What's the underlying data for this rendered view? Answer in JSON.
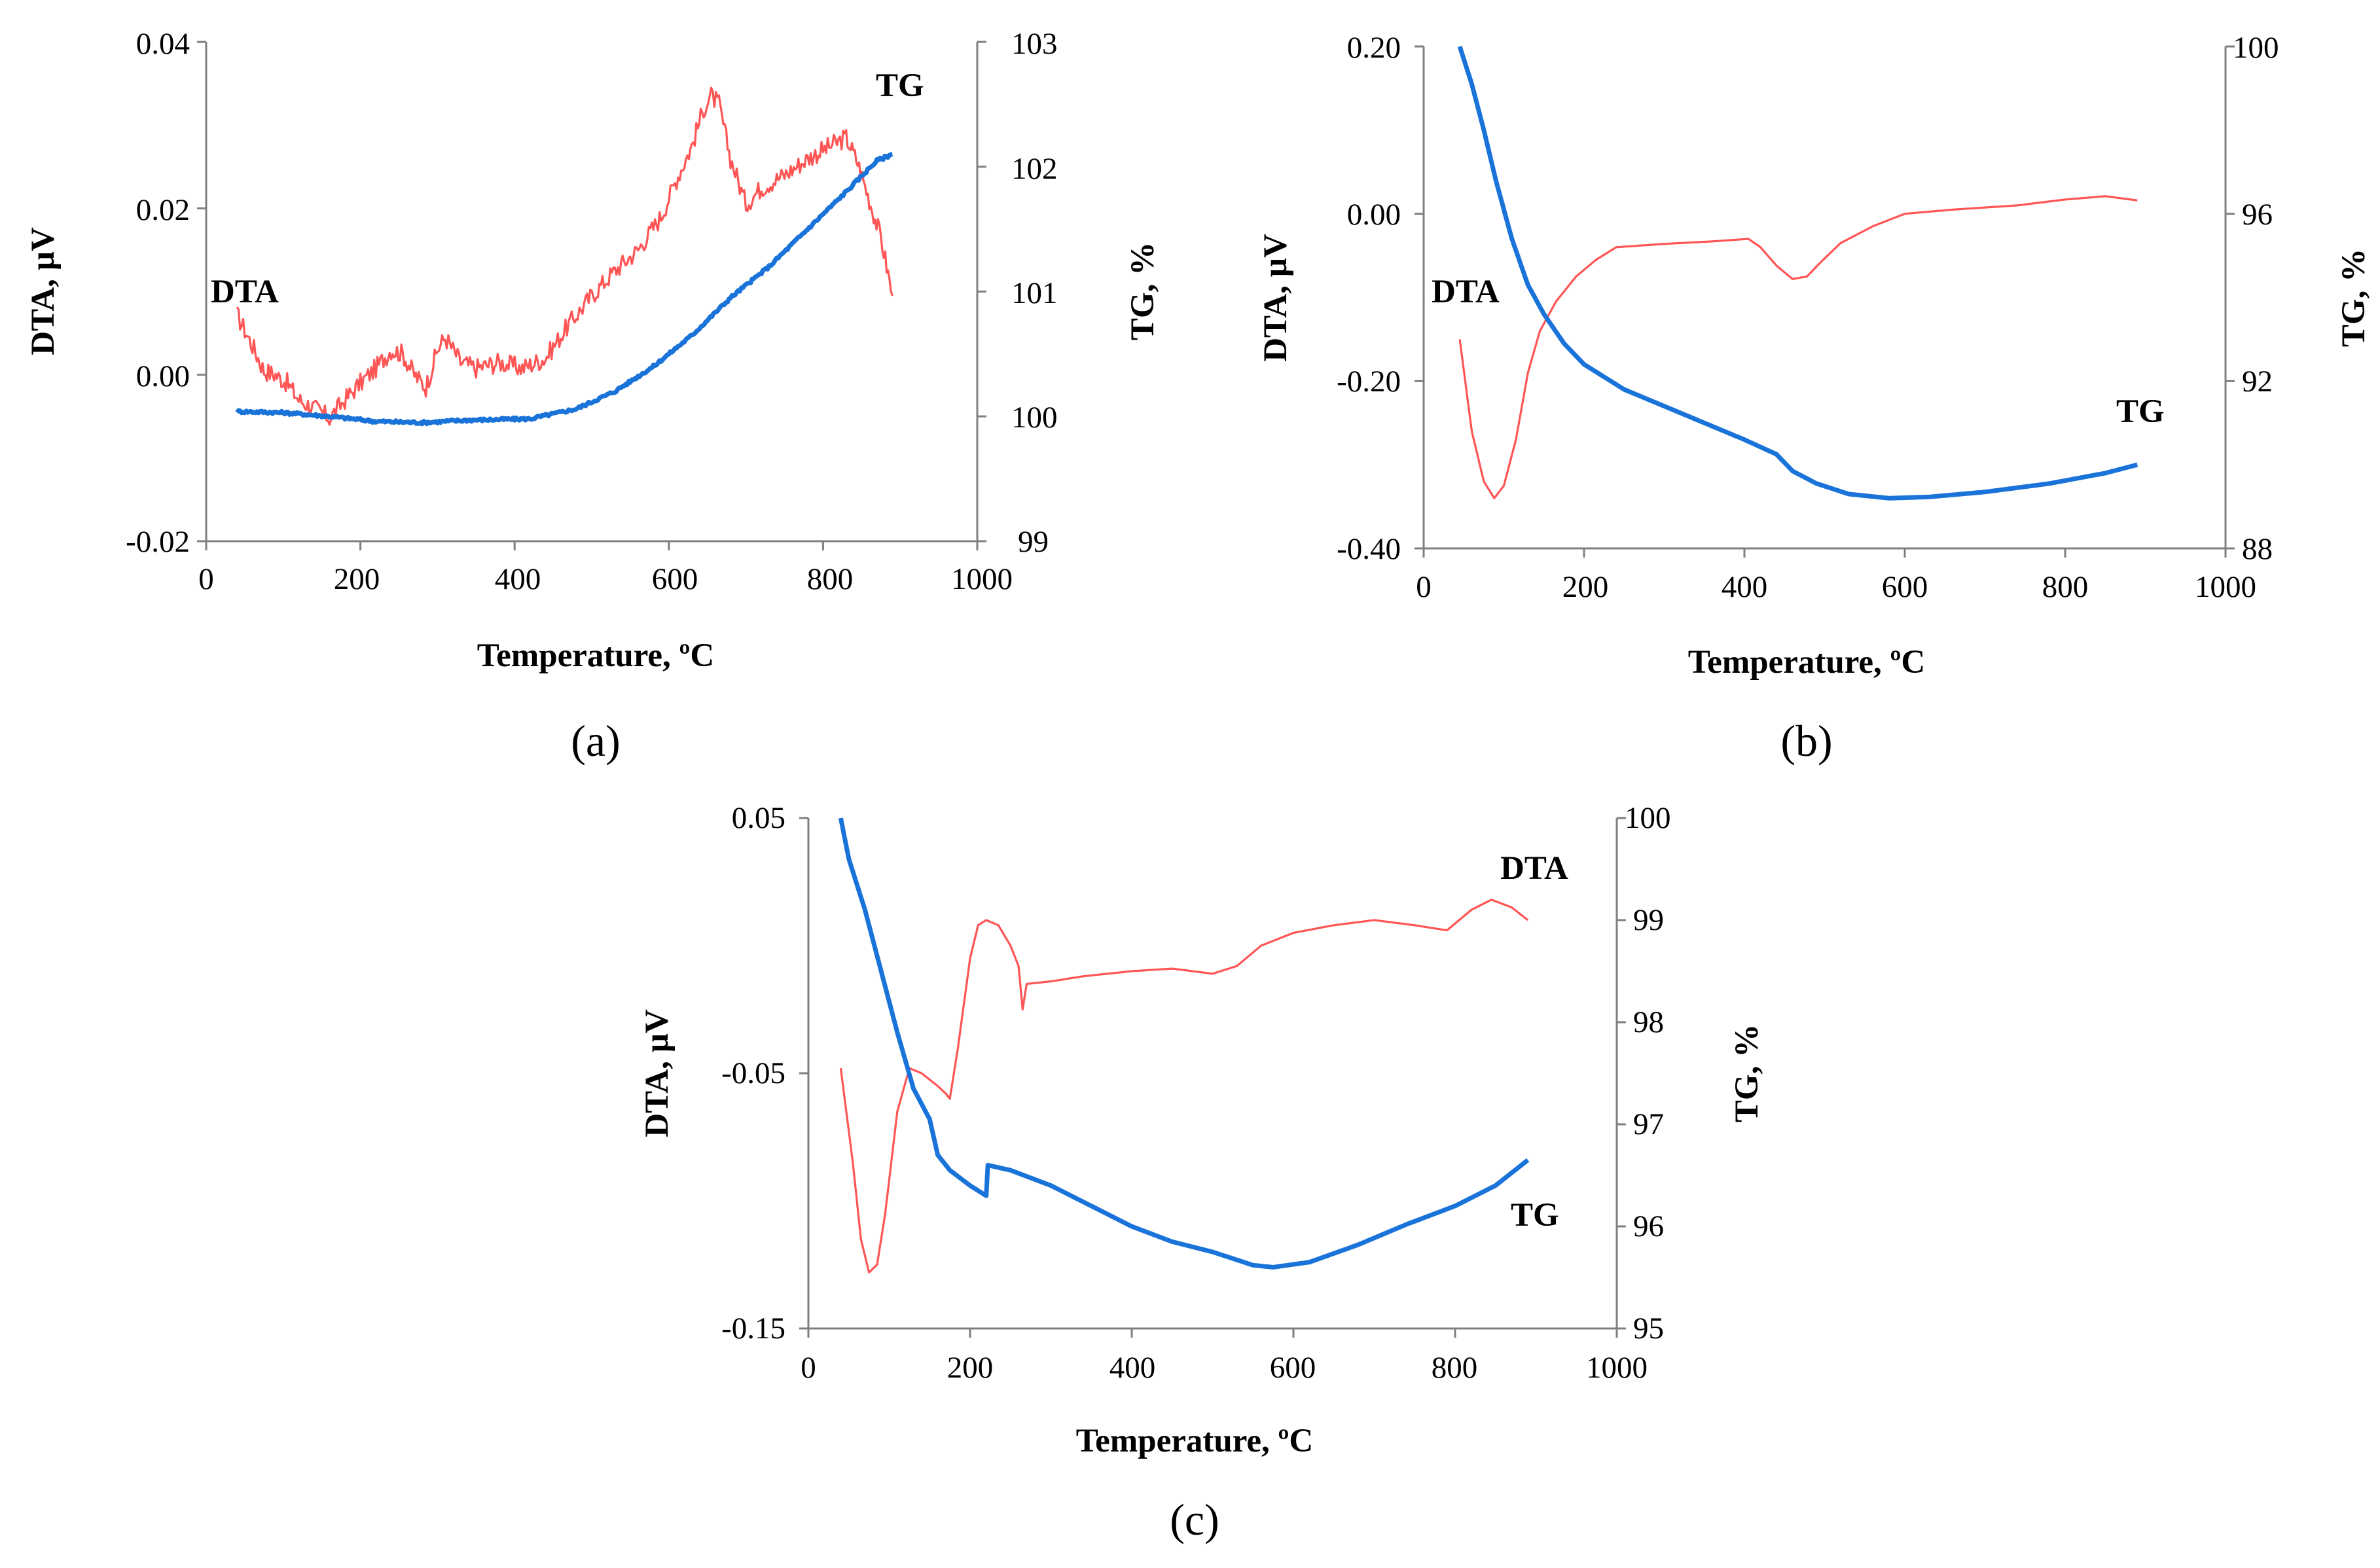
{
  "chart_data": [
    {
      "panel": "a",
      "type": "line",
      "caption": "(a)",
      "xlabel": "Temperature,  ºC",
      "ylabel_left": "DTA, µV",
      "ylabel_right": "TG, %",
      "xlim": [
        0,
        1000
      ],
      "ylim_left": [
        -0.02,
        0.04
      ],
      "ylim_right": [
        99,
        103
      ],
      "xticks": [
        "0",
        "200",
        "400",
        "600",
        "800",
        "1000"
      ],
      "yticks_left": [
        "-0.02",
        "0.00",
        "0.02",
        "0.04"
      ],
      "yticks_right": [
        "99",
        "100",
        "101",
        "102",
        "103"
      ],
      "series": [
        {
          "name": "DTA",
          "axis": "left",
          "color": "#ff5555",
          "noise": 0.0012,
          "points": [
            [
              40,
              0.0072
            ],
            [
              60,
              0.0035
            ],
            [
              75,
              0.0005
            ],
            [
              90,
              0.0
            ],
            [
              105,
              -0.001
            ],
            [
              120,
              -0.003
            ],
            [
              140,
              -0.004
            ],
            [
              160,
              -0.0052
            ],
            [
              180,
              -0.003
            ],
            [
              200,
              -0.001
            ],
            [
              220,
              0.0008
            ],
            [
              240,
              0.003
            ],
            [
              255,
              0.0025
            ],
            [
              270,
              0.0
            ],
            [
              285,
              -0.0015
            ],
            [
              300,
              0.003
            ],
            [
              310,
              0.0045
            ],
            [
              330,
              0.0015
            ],
            [
              350,
              0.0008
            ],
            [
              380,
              0.0015
            ],
            [
              410,
              0.0008
            ],
            [
              440,
              0.002
            ],
            [
              470,
              0.006
            ],
            [
              500,
              0.0095
            ],
            [
              530,
              0.0125
            ],
            [
              560,
              0.015
            ],
            [
              590,
              0.019
            ],
            [
              610,
              0.0235
            ],
            [
              630,
              0.0275
            ],
            [
              645,
              0.032
            ],
            [
              655,
              0.0335
            ],
            [
              665,
              0.0325
            ],
            [
              680,
              0.026
            ],
            [
              700,
              0.0205
            ],
            [
              720,
              0.0225
            ],
            [
              750,
              0.024
            ],
            [
              780,
              0.026
            ],
            [
              810,
              0.0275
            ],
            [
              830,
              0.0285
            ],
            [
              845,
              0.0255
            ],
            [
              860,
              0.021
            ],
            [
              875,
              0.0165
            ],
            [
              890,
              0.0095
            ]
          ]
        },
        {
          "name": "TG",
          "axis": "right",
          "color": "#1a73d9",
          "noise": 0.012,
          "points": [
            [
              40,
              100.04
            ],
            [
              100,
              100.03
            ],
            [
              160,
              100.0
            ],
            [
              220,
              99.96
            ],
            [
              280,
              99.95
            ],
            [
              340,
              99.97
            ],
            [
              420,
              99.98
            ],
            [
              480,
              100.06
            ],
            [
              530,
              100.2
            ],
            [
              580,
              100.4
            ],
            [
              630,
              100.65
            ],
            [
              680,
              100.95
            ],
            [
              730,
              101.2
            ],
            [
              780,
              101.5
            ],
            [
              830,
              101.8
            ],
            [
              870,
              102.05
            ],
            [
              890,
              102.1
            ]
          ]
        }
      ],
      "annotations": [
        "DTA",
        "TG"
      ]
    },
    {
      "panel": "b",
      "type": "line",
      "caption": "(b)",
      "xlabel": "Temperature,  ºC",
      "ylabel_left": "DTA, µV",
      "ylabel_right": "TG, %",
      "xlim": [
        0,
        1000
      ],
      "ylim_left": [
        -0.4,
        0.2
      ],
      "ylim_right": [
        88,
        100
      ],
      "xticks": [
        "0",
        "200",
        "400",
        "600",
        "800",
        "1000"
      ],
      "yticks_left": [
        "-0.40",
        "-0.20",
        "0.00",
        "0.20"
      ],
      "yticks_right": [
        "88",
        "92",
        "96",
        "100"
      ],
      "series": [
        {
          "name": "DTA",
          "axis": "left",
          "color": "#ff5555",
          "noise": 0.0,
          "points": [
            [
              45,
              -0.15
            ],
            [
              60,
              -0.26
            ],
            [
              75,
              -0.32
            ],
            [
              88,
              -0.34
            ],
            [
              100,
              -0.325
            ],
            [
              115,
              -0.27
            ],
            [
              130,
              -0.19
            ],
            [
              145,
              -0.14
            ],
            [
              165,
              -0.105
            ],
            [
              190,
              -0.075
            ],
            [
              215,
              -0.055
            ],
            [
              240,
              -0.04
            ],
            [
              300,
              -0.036
            ],
            [
              360,
              -0.033
            ],
            [
              405,
              -0.03
            ],
            [
              420,
              -0.04
            ],
            [
              440,
              -0.062
            ],
            [
              460,
              -0.078
            ],
            [
              478,
              -0.075
            ],
            [
              495,
              -0.058
            ],
            [
              520,
              -0.035
            ],
            [
              560,
              -0.015
            ],
            [
              600,
              0.0
            ],
            [
              660,
              0.005
            ],
            [
              740,
              0.01
            ],
            [
              800,
              0.017
            ],
            [
              850,
              0.021
            ],
            [
              890,
              0.016
            ]
          ]
        },
        {
          "name": "TG",
          "axis": "right",
          "color": "#1a73d9",
          "noise": 0.0,
          "points": [
            [
              45,
              100.0
            ],
            [
              60,
              99.1
            ],
            [
              75,
              98.0
            ],
            [
              90,
              96.8
            ],
            [
              110,
              95.4
            ],
            [
              130,
              94.3
            ],
            [
              150,
              93.6
            ],
            [
              175,
              92.9
            ],
            [
              200,
              92.4
            ],
            [
              250,
              91.8
            ],
            [
              300,
              91.4
            ],
            [
              350,
              91.0
            ],
            [
              400,
              90.6
            ],
            [
              440,
              90.25
            ],
            [
              460,
              89.85
            ],
            [
              490,
              89.55
            ],
            [
              530,
              89.3
            ],
            [
              580,
              89.2
            ],
            [
              630,
              89.23
            ],
            [
              700,
              89.35
            ],
            [
              780,
              89.55
            ],
            [
              850,
              89.8
            ],
            [
              890,
              90.0
            ]
          ]
        }
      ],
      "annotations": [
        "DTA",
        "TG"
      ]
    },
    {
      "panel": "c",
      "type": "line",
      "caption": "(c)",
      "xlabel": "Temperature,  ºC",
      "ylabel_left": "DTA, µV",
      "ylabel_right": "TG, %",
      "xlim": [
        0,
        1000
      ],
      "ylim_left": [
        -0.15,
        0.05
      ],
      "ylim_right": [
        95,
        100
      ],
      "xticks": [
        "0",
        "200",
        "400",
        "600",
        "800",
        "1000"
      ],
      "yticks_left": [
        "-0.15",
        "-0.05",
        "0.05"
      ],
      "yticks_right": [
        "95",
        "96",
        "97",
        "98",
        "99",
        "100"
      ],
      "series": [
        {
          "name": "DTA",
          "axis": "left",
          "color": "#ff5555",
          "noise": 0.0,
          "points": [
            [
              40,
              -0.048
            ],
            [
              55,
              -0.085
            ],
            [
              65,
              -0.115
            ],
            [
              75,
              -0.128
            ],
            [
              85,
              -0.125
            ],
            [
              95,
              -0.105
            ],
            [
              110,
              -0.065
            ],
            [
              125,
              -0.048
            ],
            [
              140,
              -0.05
            ],
            [
              160,
              -0.055
            ],
            [
              170,
              -0.058
            ],
            [
              175,
              -0.06
            ],
            [
              185,
              -0.04
            ],
            [
              200,
              -0.005
            ],
            [
              210,
              0.008
            ],
            [
              220,
              0.01
            ],
            [
              235,
              0.008
            ],
            [
              250,
              0.0
            ],
            [
              260,
              -0.008
            ],
            [
              265,
              -0.025
            ],
            [
              270,
              -0.015
            ],
            [
              300,
              -0.014
            ],
            [
              340,
              -0.012
            ],
            [
              400,
              -0.01
            ],
            [
              450,
              -0.009
            ],
            [
              500,
              -0.011
            ],
            [
              530,
              -0.008
            ],
            [
              560,
              0.0
            ],
            [
              600,
              0.005
            ],
            [
              650,
              0.008
            ],
            [
              700,
              0.01
            ],
            [
              750,
              0.008
            ],
            [
              790,
              0.006
            ],
            [
              820,
              0.014
            ],
            [
              845,
              0.018
            ],
            [
              870,
              0.015
            ],
            [
              890,
              0.01
            ]
          ]
        },
        {
          "name": "TG",
          "axis": "right",
          "color": "#1a73d9",
          "noise": 0.0,
          "points": [
            [
              40,
              100.0
            ],
            [
              50,
              99.6
            ],
            [
              70,
              99.1
            ],
            [
              90,
              98.5
            ],
            [
              110,
              97.9
            ],
            [
              130,
              97.35
            ],
            [
              150,
              97.05
            ],
            [
              160,
              96.7
            ],
            [
              175,
              96.55
            ],
            [
              200,
              96.4
            ],
            [
              220,
              96.3
            ],
            [
              222,
              96.6
            ],
            [
              250,
              96.55
            ],
            [
              300,
              96.4
            ],
            [
              350,
              96.2
            ],
            [
              400,
              96.0
            ],
            [
              450,
              95.85
            ],
            [
              500,
              95.75
            ],
            [
              550,
              95.62
            ],
            [
              575,
              95.6
            ],
            [
              620,
              95.65
            ],
            [
              680,
              95.82
            ],
            [
              740,
              96.02
            ],
            [
              800,
              96.2
            ],
            [
              850,
              96.4
            ],
            [
              890,
              96.65
            ]
          ]
        }
      ],
      "annotations": [
        "DTA",
        "TG"
      ]
    }
  ]
}
